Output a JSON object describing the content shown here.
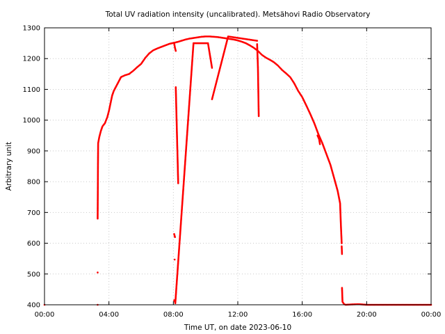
{
  "chart_data": {
    "type": "scatter",
    "title": "Total UV radiation intensity (uncalibrated). Metsähovi Radio Observatory",
    "xlabel": "Time UT, on date 2023-06-10",
    "ylabel": "Arbitrary unit",
    "xlim": [
      0,
      24
    ],
    "ylim": [
      400,
      1300
    ],
    "x_ticks": [
      0,
      4,
      8,
      12,
      16,
      20,
      24
    ],
    "x_tick_labels": [
      "00:00",
      "04:00",
      "08:00",
      "12:00",
      "16:00",
      "20:00",
      "00:00"
    ],
    "y_ticks": [
      400,
      500,
      600,
      700,
      800,
      900,
      1000,
      1100,
      1200,
      1300
    ],
    "y_tick_labels": [
      "400",
      "500",
      "600",
      "700",
      "800",
      "900",
      "1000",
      "1100",
      "1200",
      "1300"
    ],
    "grid": true,
    "legend": "none",
    "series": [
      {
        "color": "#ff0000",
        "marker": "dot",
        "points": [
          [
            0.0,
            400
          ],
          [
            3.3,
            400
          ],
          [
            3.3,
            505
          ],
          [
            3.3,
            680
          ],
          [
            3.32,
            855
          ],
          [
            3.33,
            925
          ],
          [
            3.4,
            945
          ],
          [
            3.5,
            965
          ],
          [
            3.6,
            980
          ],
          [
            3.75,
            990
          ],
          [
            3.9,
            1010
          ],
          [
            4.0,
            1030
          ],
          [
            4.1,
            1055
          ],
          [
            4.2,
            1080
          ],
          [
            4.3,
            1095
          ],
          [
            4.45,
            1110
          ],
          [
            4.6,
            1125
          ],
          [
            4.75,
            1140
          ],
          [
            5.0,
            1146
          ],
          [
            5.25,
            1150
          ],
          [
            5.5,
            1160
          ],
          [
            5.75,
            1172
          ],
          [
            6.0,
            1183
          ],
          [
            6.25,
            1202
          ],
          [
            6.5,
            1217
          ],
          [
            6.75,
            1227
          ],
          [
            7.0,
            1233
          ],
          [
            7.25,
            1238
          ],
          [
            7.5,
            1243
          ],
          [
            7.75,
            1248
          ],
          [
            8.0,
            1251
          ],
          [
            8.25,
            1254
          ],
          [
            8.5,
            1258
          ],
          [
            8.75,
            1262
          ],
          [
            9.0,
            1265
          ],
          [
            9.25,
            1267
          ],
          [
            9.5,
            1269
          ],
          [
            9.75,
            1271
          ],
          [
            10.0,
            1272
          ],
          [
            10.25,
            1272
          ],
          [
            10.5,
            1271
          ],
          [
            10.75,
            1270
          ],
          [
            11.0,
            1268
          ],
          [
            11.25,
            1266
          ],
          [
            11.5,
            1264
          ],
          [
            11.75,
            1262
          ],
          [
            12.0,
            1259
          ],
          [
            12.25,
            1255
          ],
          [
            12.5,
            1250
          ],
          [
            12.75,
            1243
          ],
          [
            13.0,
            1235
          ],
          [
            13.25,
            1225
          ],
          [
            13.5,
            1212
          ],
          [
            13.75,
            1203
          ],
          [
            14.0,
            1196
          ],
          [
            14.25,
            1188
          ],
          [
            14.5,
            1177
          ],
          [
            14.75,
            1163
          ],
          [
            15.0,
            1152
          ],
          [
            15.25,
            1140
          ],
          [
            15.5,
            1120
          ],
          [
            15.75,
            1095
          ],
          [
            16.0,
            1075
          ],
          [
            16.25,
            1048
          ],
          [
            16.5,
            1020
          ],
          [
            16.75,
            990
          ],
          [
            17.0,
            955
          ],
          [
            17.25,
            925
          ],
          [
            17.5,
            890
          ],
          [
            17.75,
            855
          ],
          [
            18.0,
            808
          ],
          [
            18.2,
            770
          ],
          [
            18.35,
            730
          ],
          [
            18.4,
            660
          ],
          [
            18.45,
            600
          ],
          [
            18.45,
            590
          ],
          [
            18.47,
            565
          ],
          [
            18.47,
            455
          ],
          [
            18.5,
            410
          ],
          [
            18.6,
            402
          ],
          [
            18.7,
            400
          ],
          [
            19.0,
            401
          ],
          [
            19.5,
            402
          ],
          [
            20.0,
            400
          ],
          [
            22.0,
            400
          ],
          [
            24.0,
            400
          ],
          [
            8.05,
            1250
          ],
          [
            8.1,
            1235
          ],
          [
            8.15,
            1225
          ],
          [
            8.15,
            1107
          ],
          [
            8.3,
            795
          ],
          [
            8.05,
            630
          ],
          [
            8.1,
            620
          ],
          [
            8.08,
            547
          ],
          [
            8.05,
            415
          ],
          [
            8.1,
            410
          ],
          [
            8.12,
            405
          ],
          [
            9.25,
            1250
          ],
          [
            10.15,
            1250
          ],
          [
            10.4,
            1170
          ],
          [
            10.4,
            1068
          ],
          [
            11.4,
            1272
          ],
          [
            13.2,
            1258
          ],
          [
            13.2,
            1247
          ],
          [
            13.25,
            1172
          ],
          [
            13.3,
            1013
          ],
          [
            16.95,
            950
          ],
          [
            17.05,
            938
          ],
          [
            17.1,
            922
          ]
        ]
      }
    ]
  }
}
